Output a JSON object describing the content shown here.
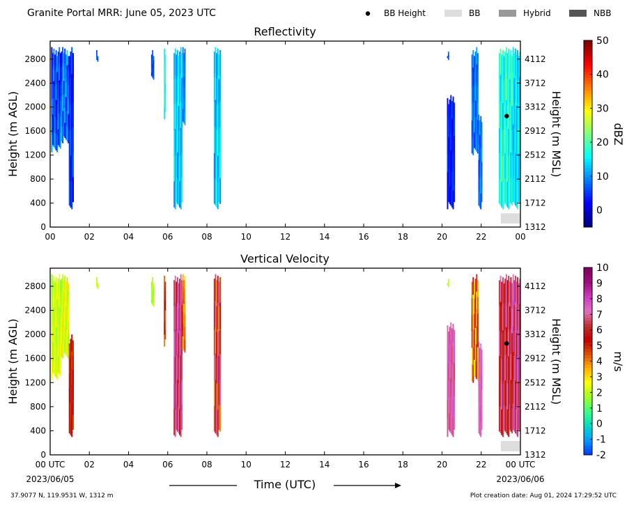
{
  "header": {
    "title": "Granite Portal MRR:  June 05, 2023 UTC",
    "legend": [
      {
        "label": "BB Height",
        "marker": "dot",
        "color": "#000000"
      },
      {
        "label": "BB",
        "marker": "box",
        "color": "#dddddd"
      },
      {
        "label": "Hybrid",
        "marker": "box",
        "color": "#999999"
      },
      {
        "label": "NBB",
        "marker": "box",
        "color": "#555555"
      }
    ]
  },
  "footer": {
    "location": "37.9077 N, 119.9531 W, 1312 m",
    "creation": "Plot creation date: Aug 01, 2024 17:29:52 UTC",
    "start_date": "2023/06/05",
    "end_date": "2023/06/06",
    "xlabel": "Time (UTC)"
  },
  "chart_data": [
    {
      "type": "heatmap",
      "title": "Reflectivity",
      "xlabel": "",
      "ylabel": "Height (m AGL)",
      "ylabel_right": "Height (m MSL)",
      "colorbar_label": "dBZ",
      "xlim": [
        0,
        24
      ],
      "ylim": [
        0,
        3100
      ],
      "x_ticks": [
        "00",
        "02",
        "04",
        "06",
        "08",
        "10",
        "12",
        "14",
        "16",
        "18",
        "20",
        "22",
        "00"
      ],
      "y_ticks": [
        0,
        400,
        800,
        1200,
        1600,
        2000,
        2400,
        2800
      ],
      "y_ticks_right": [
        1312,
        1712,
        2112,
        2512,
        2912,
        3312,
        3712,
        4112
      ],
      "colorbar": {
        "min": -5,
        "max": 50,
        "ticks": [
          0,
          10,
          20,
          30,
          40,
          50
        ],
        "colors": [
          "#00007f",
          "#0000ff",
          "#007fff",
          "#00ffff",
          "#7fff7f",
          "#ffff00",
          "#ff7f00",
          "#ff0000",
          "#7f0000"
        ]
      },
      "echo_bands": [
        {
          "x0": 0.05,
          "x1": 0.55,
          "y0": 1250,
          "y1": 3000,
          "dbz_low": 0,
          "dbz_high": 12
        },
        {
          "x0": 0.55,
          "x1": 0.95,
          "y0": 1400,
          "y1": 3000,
          "dbz_low": 2,
          "dbz_high": 14
        },
        {
          "x0": 0.95,
          "x1": 1.2,
          "y0": 300,
          "y1": 3000,
          "dbz_low": 0,
          "dbz_high": 8
        },
        {
          "x0": 2.35,
          "x1": 2.45,
          "y0": 2700,
          "y1": 3000,
          "dbz_low": 4,
          "dbz_high": 8
        },
        {
          "x0": 5.15,
          "x1": 5.3,
          "y0": 2400,
          "y1": 3000,
          "dbz_low": 4,
          "dbz_high": 8
        },
        {
          "x0": 5.8,
          "x1": 5.9,
          "y0": 1800,
          "y1": 3000,
          "dbz_low": 14,
          "dbz_high": 20
        },
        {
          "x0": 6.3,
          "x1": 6.75,
          "y0": 300,
          "y1": 3000,
          "dbz_low": 8,
          "dbz_high": 18
        },
        {
          "x0": 6.75,
          "x1": 6.9,
          "y0": 1700,
          "y1": 3000,
          "dbz_low": 6,
          "dbz_high": 12
        },
        {
          "x0": 8.35,
          "x1": 8.7,
          "y0": 300,
          "y1": 3000,
          "dbz_low": 8,
          "dbz_high": 18
        },
        {
          "x0": 20.25,
          "x1": 20.35,
          "y0": 2700,
          "y1": 3000,
          "dbz_low": 4,
          "dbz_high": 8
        },
        {
          "x0": 20.25,
          "x1": 20.65,
          "y0": 300,
          "y1": 2200,
          "dbz_low": 0,
          "dbz_high": 6
        },
        {
          "x0": 21.5,
          "x1": 21.85,
          "y0": 1200,
          "y1": 3000,
          "dbz_low": 4,
          "dbz_high": 12
        },
        {
          "x0": 21.85,
          "x1": 22.05,
          "y0": 300,
          "y1": 1900,
          "dbz_low": 4,
          "dbz_high": 12
        },
        {
          "x0": 22.9,
          "x1": 23.6,
          "y0": 300,
          "y1": 3000,
          "dbz_low": 12,
          "dbz_high": 22
        },
        {
          "x0": 23.6,
          "x1": 24.0,
          "y0": 300,
          "y1": 3000,
          "dbz_low": 10,
          "dbz_high": 18
        }
      ],
      "bb_height_points": [
        {
          "x": 23.3,
          "y": 1850
        }
      ],
      "bb_type_boxes": [
        {
          "x0": 23.0,
          "x1": 24.0,
          "y0": 60,
          "y1": 230,
          "type": "BB"
        }
      ]
    },
    {
      "type": "heatmap",
      "title": "Vertical Velocity",
      "xlabel": "Time (UTC)",
      "ylabel": "Height (m AGL)",
      "ylabel_right": "Height (m MSL)",
      "colorbar_label": "m/s",
      "xlim": [
        0,
        24
      ],
      "ylim": [
        0,
        3100
      ],
      "x_ticks": [
        "00 UTC",
        "02",
        "04",
        "06",
        "08",
        "10",
        "12",
        "14",
        "16",
        "18",
        "20",
        "22",
        "00 UTC"
      ],
      "y_ticks": [
        0,
        400,
        800,
        1200,
        1600,
        2000,
        2400,
        2800
      ],
      "y_ticks_right": [
        1312,
        1712,
        2112,
        2512,
        2912,
        3312,
        3712,
        4112
      ],
      "colorbar": {
        "min": -2,
        "max": 10,
        "ticks": [
          -2,
          -1,
          0,
          1,
          2,
          3,
          4,
          5,
          6,
          7,
          8,
          9,
          10
        ],
        "colors": [
          "#0040ff",
          "#00a0ff",
          "#00e0c0",
          "#40ff80",
          "#a0ff20",
          "#ffff00",
          "#ffb000",
          "#e05000",
          "#c00000",
          "#c03030",
          "#e070c0",
          "#d040c0",
          "#a01080",
          "#800060"
        ]
      },
      "echo_bands": [
        {
          "x0": 0.05,
          "x1": 0.55,
          "y0": 1250,
          "y1": 3000,
          "w_low": 1.5,
          "w_high": 2.8
        },
        {
          "x0": 0.55,
          "x1": 0.95,
          "y0": 1600,
          "y1": 3000,
          "w_low": 1.5,
          "w_high": 3.2
        },
        {
          "x0": 0.95,
          "x1": 1.2,
          "y0": 300,
          "y1": 2000,
          "w_low": 4.5,
          "w_high": 6.0
        },
        {
          "x0": 2.35,
          "x1": 2.45,
          "y0": 2700,
          "y1": 3000,
          "w_low": 1.8,
          "w_high": 2.2
        },
        {
          "x0": 5.15,
          "x1": 5.3,
          "y0": 2400,
          "y1": 3000,
          "w_low": 1.5,
          "w_high": 2.2
        },
        {
          "x0": 5.8,
          "x1": 5.9,
          "y0": 1800,
          "y1": 3000,
          "w_low": 4.0,
          "w_high": 5.5
        },
        {
          "x0": 6.3,
          "x1": 6.75,
          "y0": 300,
          "y1": 3000,
          "w_low": 5.5,
          "w_high": 8.5
        },
        {
          "x0": 6.75,
          "x1": 6.9,
          "y0": 1700,
          "y1": 3000,
          "w_low": 3.0,
          "w_high": 5.0
        },
        {
          "x0": 8.35,
          "x1": 8.7,
          "y0": 300,
          "y1": 3000,
          "w_low": 3.5,
          "w_high": 8.0
        },
        {
          "x0": 20.25,
          "x1": 20.35,
          "y0": 2700,
          "y1": 3000,
          "w_low": 1.8,
          "w_high": 2.2
        },
        {
          "x0": 20.25,
          "x1": 20.65,
          "y0": 300,
          "y1": 2200,
          "w_low": 6.5,
          "w_high": 8.0
        },
        {
          "x0": 21.5,
          "x1": 21.85,
          "y0": 1200,
          "y1": 3000,
          "w_low": 2.0,
          "w_high": 6.5
        },
        {
          "x0": 21.85,
          "x1": 22.05,
          "y0": 300,
          "y1": 1900,
          "w_low": 7.0,
          "w_high": 8.0
        },
        {
          "x0": 22.9,
          "x1": 23.6,
          "y0": 300,
          "y1": 3000,
          "w_low": 5.0,
          "w_high": 7.5
        },
        {
          "x0": 23.6,
          "x1": 24.0,
          "y0": 300,
          "y1": 3000,
          "w_low": 5.5,
          "w_high": 8.5
        }
      ],
      "bb_height_points": [
        {
          "x": 23.3,
          "y": 1850
        }
      ],
      "bb_type_boxes": [
        {
          "x0": 23.0,
          "x1": 24.0,
          "y0": 60,
          "y1": 230,
          "type": "BB"
        }
      ]
    }
  ]
}
